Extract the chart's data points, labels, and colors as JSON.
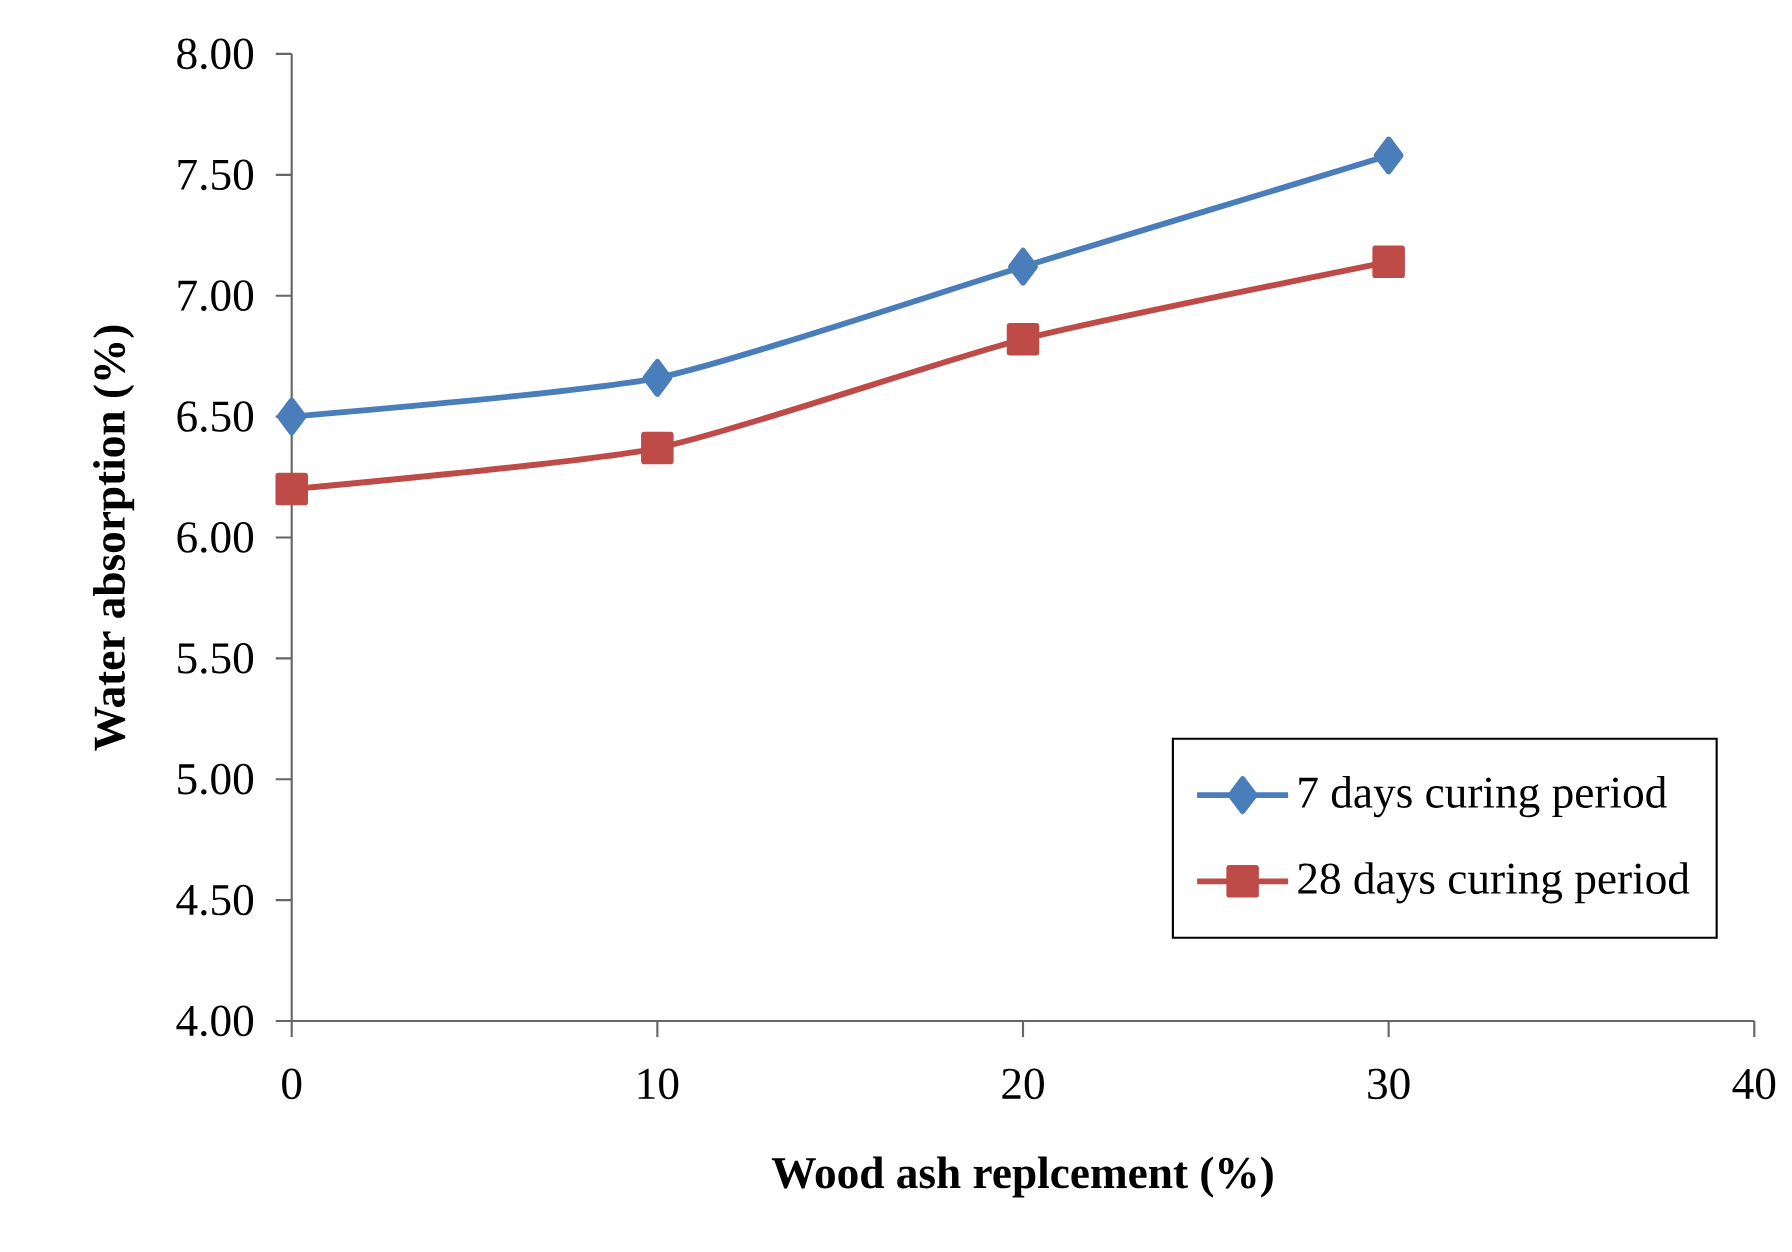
{
  "chart_data": {
    "type": "line",
    "xlabel": "Wood ash replcement (%)",
    "ylabel": "Water absorption  (%)",
    "x": [
      0,
      10,
      20,
      30
    ],
    "series": [
      {
        "name": "7 days curing period",
        "color": "#4a7ebb",
        "marker": "diamond",
        "values": [
          6.5,
          6.66,
          7.12,
          7.58
        ]
      },
      {
        "name": "28 days curing period",
        "color": "#be4b48",
        "marker": "square",
        "values": [
          6.2,
          6.37,
          6.82,
          7.14
        ]
      }
    ],
    "xlim": [
      0,
      40
    ],
    "ylim": [
      4,
      8
    ],
    "xticks": [
      0,
      10,
      20,
      30,
      40
    ],
    "yticks": [
      {
        "value": 4,
        "label": "4.00"
      },
      {
        "value": 4.5,
        "label": "4.50"
      },
      {
        "value": 5,
        "label": "5.00"
      },
      {
        "value": 5.5,
        "label": "5.50"
      },
      {
        "value": 6,
        "label": "6.00"
      },
      {
        "value": 6.5,
        "label": "6.50"
      },
      {
        "value": 7,
        "label": "7.00"
      },
      {
        "value": 7.5,
        "label": "7.50"
      },
      {
        "value": 8,
        "label": "8.00"
      }
    ],
    "grid": false,
    "legend": "bottom right",
    "line_style": "solid"
  }
}
